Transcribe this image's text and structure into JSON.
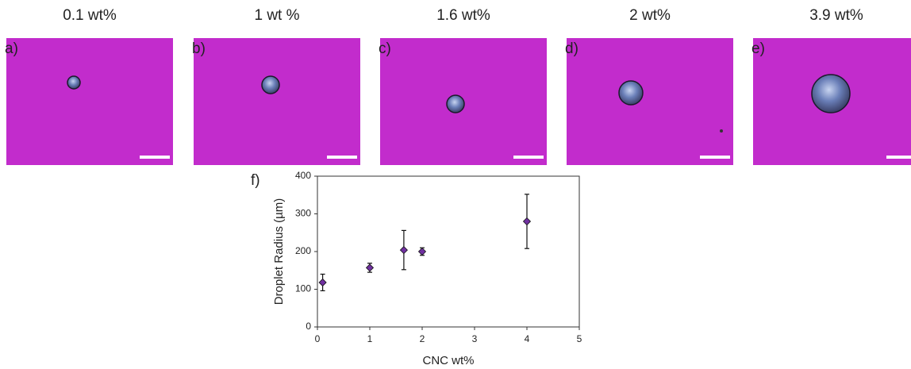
{
  "panels": [
    {
      "caption": "0.1 wt%",
      "label": "a)"
    },
    {
      "caption": "1 wt %",
      "label": "b)"
    },
    {
      "caption": "1.6 wt%",
      "label": "c)"
    },
    {
      "caption": "2 wt%",
      "label": "d)"
    },
    {
      "caption": "3.9 wt%",
      "label": "e)"
    }
  ],
  "chart_data": {
    "type": "scatter",
    "panel_label": "f)",
    "x_label": "CNC wt%",
    "y_label": "Droplet Radius (µm)",
    "x": [
      0.1,
      1,
      1.65,
      2,
      4
    ],
    "series": [
      {
        "color": "#7030a0",
        "values": [
          118,
          157,
          204,
          200,
          280
        ],
        "errors": [
          22,
          12,
          52,
          10,
          72
        ]
      }
    ],
    "xlim": [
      0,
      5
    ],
    "xticks": [
      0,
      1,
      2,
      3,
      4,
      5
    ],
    "ylim": [
      0,
      400
    ],
    "yticks": [
      0,
      100,
      200,
      300,
      400
    ]
  }
}
